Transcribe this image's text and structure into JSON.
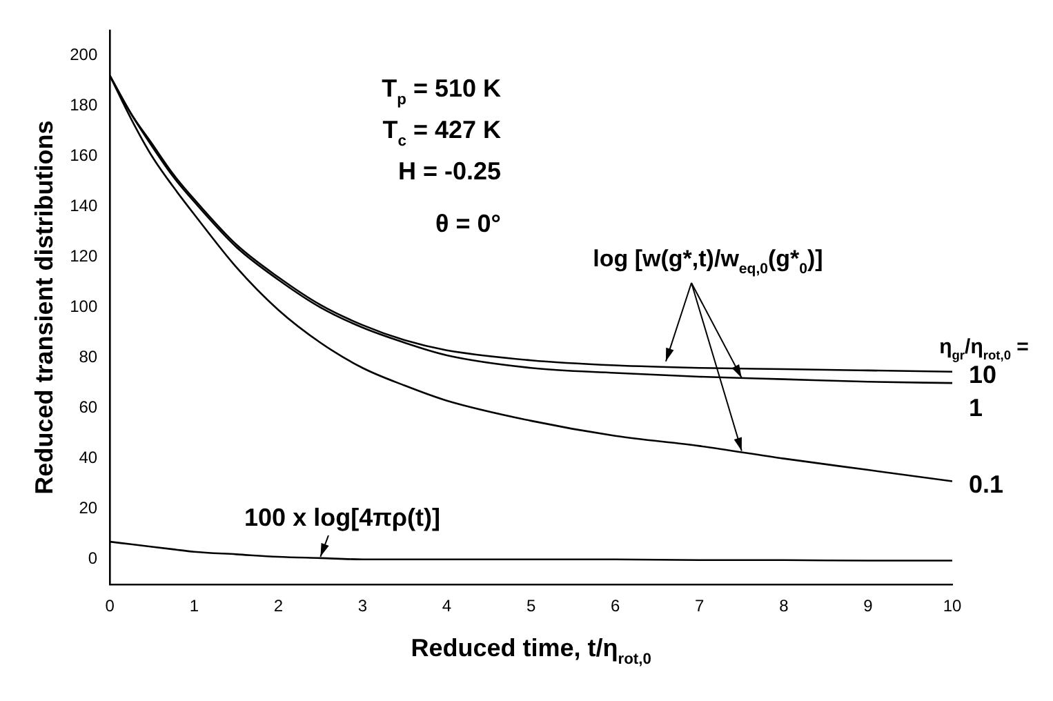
{
  "chart_data": {
    "type": "line",
    "xlabel": "Reduced time, t/η$_{rot,0}$",
    "ylabel": "Reduced transient distributions",
    "x": [
      0,
      0.25,
      0.5,
      0.75,
      1,
      1.5,
      2,
      2.5,
      3,
      3.5,
      4,
      5,
      6,
      7,
      8,
      9,
      10
    ],
    "series": [
      {
        "name": "10",
        "color": "#000000",
        "values": [
          192,
          177,
          165,
          153,
          143,
          125,
          112,
          101,
          93,
          87,
          83,
          79,
          77,
          76,
          75.5,
          75,
          74.5
        ]
      },
      {
        "name": "1",
        "color": "#000000",
        "values": [
          192,
          177,
          164,
          152,
          142,
          124,
          111,
          100,
          92,
          86,
          81,
          76,
          74,
          72.5,
          71.5,
          70.5,
          70
        ]
      },
      {
        "name": "0.1",
        "color": "#000000",
        "values": [
          192,
          175,
          160,
          148,
          137,
          116,
          99,
          86,
          76,
          69,
          63,
          55,
          49,
          45,
          40,
          35.5,
          31
        ]
      },
      {
        "name": "100 x log[4πρ(t)]",
        "color": "#000000",
        "values": [
          7,
          6,
          5,
          4,
          3,
          2,
          1,
          0.5,
          0,
          0,
          0,
          0,
          0,
          -0.3,
          -0.3,
          -0.5,
          -0.5
        ]
      }
    ],
    "xlim": [
      0,
      10
    ],
    "xticks": [
      0,
      1,
      2,
      3,
      4,
      5,
      6,
      7,
      8,
      9,
      10
    ],
    "ylim": [
      -10,
      210
    ],
    "yticks": [
      0,
      20,
      40,
      60,
      80,
      100,
      120,
      140,
      160,
      180,
      200
    ],
    "grid": false,
    "legend": false,
    "marker": "none",
    "line_style": "solid",
    "annotations": [
      "T$_{p}$ = 510 K",
      "T$_{c}$ = 427 K",
      "H = -0.25",
      "θ = 0°",
      {
        "text": "log [w(g*,t)/w$_{eq,0}$(g*$_{0}$)]",
        "x": 7.5,
        "y": 71.5
      },
      "η$_{gr}$/η$_{rot,0}$ ="
    ]
  }
}
